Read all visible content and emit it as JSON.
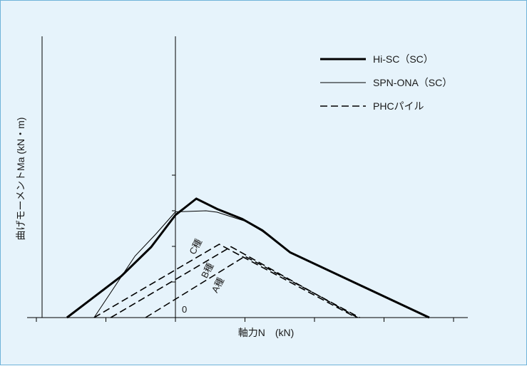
{
  "chart_data": {
    "type": "line",
    "xlabel": "軸力N　(kN)",
    "ylabel": "曲げモーメントMa (kN・m)",
    "origin_label": "0",
    "grid": false,
    "legend_position": "top-right",
    "xlim": [
      -2.0,
      4.0
    ],
    "ylim": [
      0,
      4.0
    ],
    "series": [
      {
        "name": "Hi-SC (SC)",
        "style": "thick-solid",
        "color": "#000000",
        "points": [
          [
            -1.56,
            0
          ],
          [
            -0.78,
            1.16
          ],
          [
            -0.35,
            1.98
          ],
          [
            0.0,
            2.88
          ],
          [
            0.3,
            3.34
          ],
          [
            0.6,
            3.05
          ],
          [
            0.96,
            2.77
          ],
          [
            1.25,
            2.45
          ],
          [
            1.65,
            1.83
          ],
          [
            3.65,
            0
          ]
        ]
      },
      {
        "name": "SPN-ONA (SC)",
        "style": "thin-solid",
        "color": "#000000",
        "points": [
          [
            -1.17,
            0
          ],
          [
            -0.58,
            1.73
          ],
          [
            -0.28,
            2.35
          ],
          [
            0.0,
            2.97
          ],
          [
            0.44,
            3.0
          ],
          [
            0.6,
            2.96
          ],
          [
            1.0,
            2.71
          ],
          [
            1.25,
            2.42
          ],
          [
            1.65,
            1.83
          ],
          [
            3.65,
            0
          ]
        ]
      }
    ],
    "dashed_series": [
      {
        "name": "C種",
        "color": "#000000",
        "points": [
          [
            -1.17,
            0
          ],
          [
            0.63,
            2.06
          ],
          [
            2.6,
            0
          ]
        ]
      },
      {
        "name": "B種",
        "color": "#000000",
        "points": [
          [
            -0.93,
            0
          ],
          [
            0.8,
            1.99
          ],
          [
            2.62,
            0
          ]
        ]
      },
      {
        "name": "A種",
        "color": "#000000",
        "points": [
          [
            -0.43,
            0
          ],
          [
            1.0,
            1.72
          ],
          [
            2.65,
            0
          ]
        ]
      }
    ],
    "legend": [
      {
        "label": "Hi-SC（SC）",
        "style": "thick-solid"
      },
      {
        "label": "SPN-ONA（SC）",
        "style": "thin-solid"
      },
      {
        "label": "PHCパイル",
        "style": "dashed"
      }
    ],
    "annotations": [
      {
        "text": "C種",
        "x": 0.33,
        "y": 1.95,
        "rotate": -62
      },
      {
        "text": "B種",
        "x": 0.5,
        "y": 1.28,
        "rotate": -62
      },
      {
        "text": "A種",
        "x": 0.65,
        "y": 0.87,
        "rotate": -62
      }
    ]
  }
}
